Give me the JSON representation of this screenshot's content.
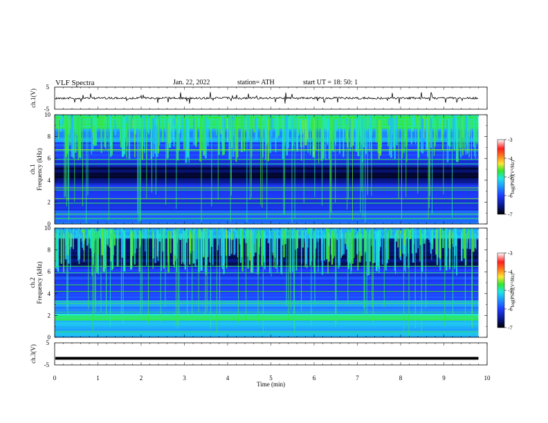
{
  "header": {
    "title": "VLF  Spectra",
    "date": "Jan. 22, 2022",
    "station": "station= ATH",
    "start": "start  UT  =    18: 50: 1"
  },
  "chart_data": {
    "type": "heatmap",
    "title": "VLF  Spectra",
    "xlabel": "Time  (min)",
    "x_ticks": [
      "0",
      "1",
      "2",
      "3",
      "4",
      "5",
      "6",
      "7",
      "8",
      "9",
      "10"
    ],
    "xlim": [
      0,
      10
    ],
    "data_end_min": 9.8,
    "panels": [
      {
        "id": "ch1v",
        "kind": "waveform",
        "ylabel": "ch.1(V)",
        "y_ticks": [
          "5",
          "-5"
        ],
        "ylim": [
          -5,
          5
        ],
        "trace_level": 0
      },
      {
        "id": "ch1spec",
        "kind": "spectrogram",
        "ylabel1": "ch.1",
        "ylabel2": "Frequency  (kHz)",
        "y_ticks": [
          "0",
          "2",
          "4",
          "6",
          "8",
          "10"
        ],
        "ylim": [
          0,
          10
        ]
      },
      {
        "id": "ch2spec",
        "kind": "spectrogram",
        "ylabel1": "ch.2",
        "ylabel2": "Frequency  (kHz)",
        "y_ticks": [
          "0",
          "2",
          "4",
          "6",
          "8",
          "10"
        ],
        "ylim": [
          0,
          10
        ]
      },
      {
        "id": "ch3v",
        "kind": "waveform",
        "ylabel": "ch.3(V)",
        "y_ticks": [
          "5",
          "-5"
        ],
        "ylim": [
          -5,
          5
        ],
        "trace_level": -2
      }
    ],
    "colorbar": {
      "label": "log(PSD)(V²/Hz)",
      "ticks": [
        "-3",
        "-4",
        "-5",
        "-6",
        "-7"
      ],
      "range": [
        -7,
        -3
      ],
      "colormap": [
        "#000000",
        "#0a1890",
        "#1e3cff",
        "#1e9cff",
        "#1ee6e6",
        "#32e632",
        "#c8ee32",
        "#ffe632",
        "#ff7a1e",
        "#ff1e1e",
        "#ffffff"
      ]
    }
  }
}
